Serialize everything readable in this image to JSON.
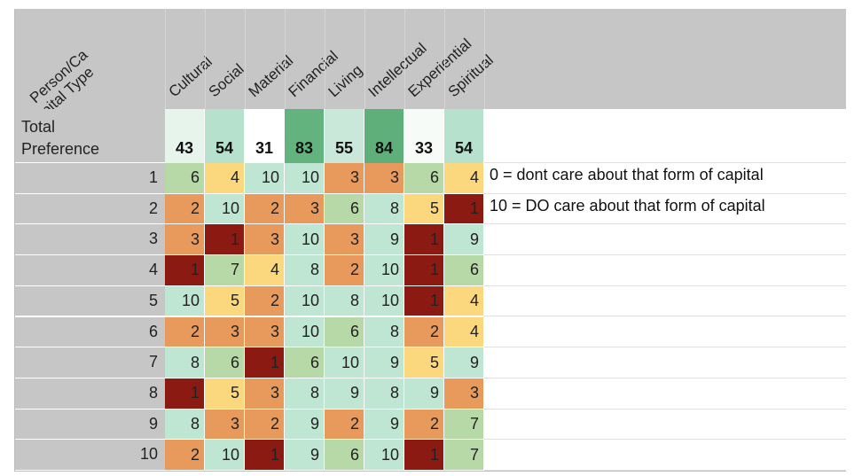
{
  "header": {
    "corner_label": "Person/Ca\npital Type",
    "columns": [
      "Cultural",
      "Social",
      "Material",
      "Financial",
      "Living",
      "Intellectual",
      "Experiential",
      "Spiritual"
    ]
  },
  "total": {
    "label": "Total\nPreference",
    "values": [
      "43",
      "54",
      "31",
      "83",
      "55",
      "84",
      "33",
      "54"
    ],
    "colors": [
      "#e6f4ec",
      "#b6e1cc",
      "#ffffff",
      "#63b37f",
      "#c9e8d9",
      "#5faf7b",
      "#f6fbf8",
      "#b6e1cc"
    ]
  },
  "rows": [
    {
      "label": "1",
      "values": [
        "6",
        "4",
        "10",
        "10",
        "3",
        "3",
        "6",
        "4"
      ]
    },
    {
      "label": "2",
      "values": [
        "2",
        "10",
        "2",
        "3",
        "6",
        "8",
        "5",
        "1"
      ]
    },
    {
      "label": "3",
      "values": [
        "3",
        "1",
        "3",
        "10",
        "3",
        "9",
        "1",
        "9"
      ]
    },
    {
      "label": "4",
      "values": [
        "1",
        "7",
        "4",
        "8",
        "2",
        "10",
        "1",
        "6"
      ]
    },
    {
      "label": "5",
      "values": [
        "10",
        "5",
        "2",
        "10",
        "8",
        "10",
        "1",
        "4"
      ]
    },
    {
      "label": "6",
      "values": [
        "2",
        "3",
        "3",
        "10",
        "6",
        "8",
        "2",
        "4"
      ]
    },
    {
      "label": "7",
      "values": [
        "8",
        "6",
        "1",
        "6",
        "10",
        "9",
        "5",
        "9"
      ]
    },
    {
      "label": "8",
      "values": [
        "1",
        "5",
        "3",
        "8",
        "9",
        "8",
        "9",
        "3"
      ]
    },
    {
      "label": "9",
      "values": [
        "8",
        "3",
        "2",
        "9",
        "2",
        "9",
        "2",
        "7"
      ]
    },
    {
      "label": "10",
      "values": [
        "2",
        "10",
        "1",
        "9",
        "6",
        "10",
        "1",
        "7"
      ]
    }
  ],
  "notes": {
    "row1": "0 = dont care about that form of capital",
    "row2": "10 = DO care about that form of capital"
  },
  "scale_colors": {
    "1": "#8b1a13",
    "2": "#e79a5b",
    "3": "#e79a5b",
    "4": "#fbd77e",
    "5": "#fbd77e",
    "6": "#b7d9a7",
    "7": "#b7d9a7",
    "8": "#bfe5d3",
    "9": "#bfe5d3",
    "10": "#bfe5d3"
  }
}
